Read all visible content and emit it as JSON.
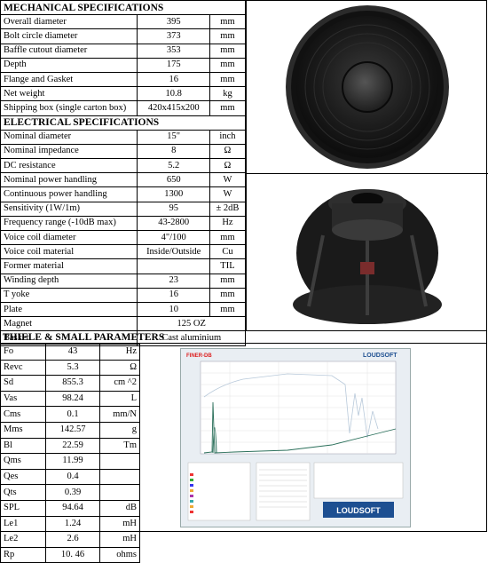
{
  "mechanical": {
    "title": "MECHANICAL SPECIFICATIONS",
    "rows": [
      {
        "name": "Overall diameter",
        "value": "395",
        "unit": "mm"
      },
      {
        "name": "Bolt circle diameter",
        "value": "373",
        "unit": "mm"
      },
      {
        "name": "Baffle cutout diameter",
        "value": "353",
        "unit": "mm"
      },
      {
        "name": "Depth",
        "value": "175",
        "unit": "mm"
      },
      {
        "name": "Flange and Gasket",
        "value": "16",
        "unit": "mm"
      },
      {
        "name": "Net weight",
        "value": "10.8",
        "unit": "kg"
      },
      {
        "name": "Shipping box (single carton box)",
        "value": "420x415x200",
        "unit": "mm"
      }
    ]
  },
  "electrical": {
    "title": "ELECTRICAL SPECIFICATIONS",
    "rows": [
      {
        "name": "Nominal diameter",
        "value": "15\"",
        "unit": "inch"
      },
      {
        "name": "Nominal impedance",
        "value": "8",
        "unit": "Ω"
      },
      {
        "name": "DC resistance",
        "value": "5.2",
        "unit": "Ω"
      },
      {
        "name": "Nominal power handling",
        "value": "650",
        "unit": "W"
      },
      {
        "name": "Continuous power handling",
        "value": "1300",
        "unit": "W"
      },
      {
        "name": "Sensitivity (1W/1m)",
        "value": "95",
        "unit": "± 2dB"
      },
      {
        "name": "Frequency range (-10dB max)",
        "value": "43-2800",
        "unit": "Hz"
      },
      {
        "name": "Voice coil diameter",
        "value": "4\"/100",
        "unit": "mm"
      },
      {
        "name": " Voice coil material",
        "value": "Inside/Outside",
        "unit": "Cu"
      },
      {
        "name": "Former material",
        "value": "",
        "unit": "TIL"
      },
      {
        "name": "Winding depth",
        "value": "23",
        "unit": "mm"
      },
      {
        "name": " T yoke",
        "value": "16",
        "unit": "mm"
      },
      {
        "name": "Plate",
        "value": "10",
        "unit": "mm"
      }
    ],
    "merged_rows": [
      {
        "name": "Magnet",
        "value": "125 OZ"
      },
      {
        "name": "Basket",
        "value": "Cast aluminium"
      }
    ]
  },
  "thiele": {
    "title": "THIELE & SMALL PARAMETERS",
    "rows": [
      {
        "name": "Fo",
        "value": "43",
        "unit": "Hz"
      },
      {
        "name": "Revc",
        "value": "5.3",
        "unit": "Ω"
      },
      {
        "name": "Sd",
        "value": "855.3",
        "unit": "cm ^2"
      },
      {
        "name": "Vas",
        "value": "98.24",
        "unit": "L"
      },
      {
        "name": "Cms",
        "value": "0.1",
        "unit": "mm/N"
      },
      {
        "name": "Mms",
        "value": "142.57",
        "unit": "g"
      },
      {
        "name": "Bl",
        "value": "22.59",
        "unit": "Tm"
      },
      {
        "name": "Qms",
        "value": "11.99",
        "unit": ""
      },
      {
        "name": "Qes",
        "value": "0.4",
        "unit": ""
      },
      {
        "name": "Qts",
        "value": "0.39",
        "unit": ""
      },
      {
        "name": "SPL",
        "value": "94.64",
        "unit": "dB"
      },
      {
        "name": "Le1",
        "value": "1.24",
        "unit": "mH"
      },
      {
        "name": "Le2",
        "value": "2.6",
        "unit": "mH"
      },
      {
        "name": "Rp",
        "value": "10. 46",
        "unit": "ohms"
      }
    ]
  },
  "graph": {
    "brand_left": "FINER-DB",
    "brand_right": "LOUDSOFT",
    "footer_logo": "LOUDSOFT",
    "colors": {
      "spl": "#c9d6e4",
      "imp": "#2a6f5a",
      "brand": "#1d4f91",
      "red": "#d22"
    }
  }
}
